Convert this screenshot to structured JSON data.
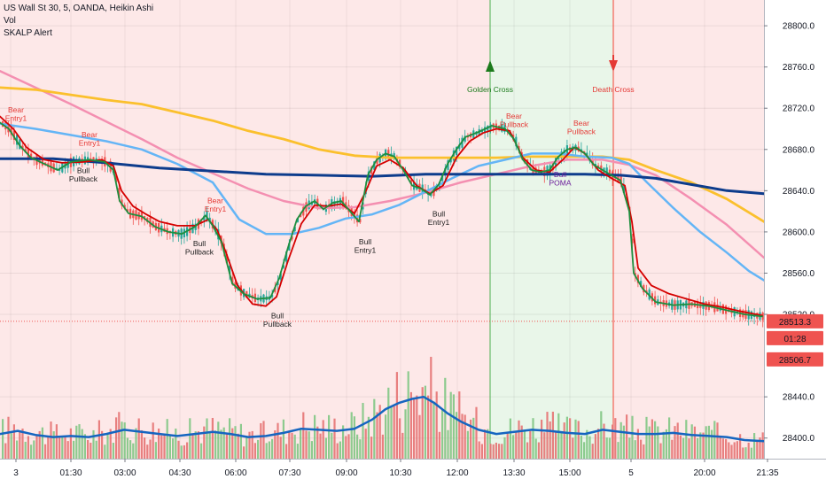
{
  "legend": {
    "symbol_line": "US Wall St 30, 5, OANDA, Heikin Ashi",
    "study_vol": "Vol",
    "study_alert": "SKALP Alert"
  },
  "colors": {
    "bear_bg": "#fde8e8",
    "bull_bg": "#e9f6e9",
    "up_candle": "#26a69a",
    "down_candle": "#ef5350",
    "ema_fast": "#1e8e3e",
    "ema_slow": "#d50000",
    "ma_blue_light": "#64b5f6",
    "ma_pink": "#f48fb1",
    "ma_orange": "#fbc02d",
    "ma_navy": "#0d3c8c",
    "vol_up": "#81c784",
    "vol_down": "#e57373",
    "vol_ma": "#1565c0",
    "label_red": "#e53935",
    "label_green": "#2e7d32"
  },
  "price_axis": {
    "ticks": [
      28800.0,
      28760.0,
      28720.0,
      28680.0,
      28640.0,
      28600.0,
      28560.0,
      28520.0,
      28440.0,
      28400.0
    ],
    "tick_labels": [
      "28800.0",
      "28760.0",
      "28720.0",
      "28680.0",
      "28640.0",
      "28600.0",
      "28560.0",
      "28520.0",
      "28440.0",
      "28400.0"
    ],
    "last_price": "28513.3",
    "countdown": "01:28",
    "low_marker": "28506.7"
  },
  "time_axis": {
    "labels": [
      "3",
      "01:30",
      "03:00",
      "04:30",
      "06:00",
      "07:30",
      "09:00",
      "10:30",
      "12:00",
      "13:30",
      "15:00",
      "5",
      "20:00",
      "21:35"
    ]
  },
  "chart_data": {
    "type": "candlestick",
    "title": "US Wall St 30, 5, OANDA, Heikin Ashi",
    "ylim": [
      28380,
      28825
    ],
    "x_range": [
      "3",
      "21:35"
    ],
    "ema_fast_path": [
      [
        0,
        28706
      ],
      [
        10,
        28700
      ],
      [
        22,
        28684
      ],
      [
        35,
        28672
      ],
      [
        50,
        28666
      ],
      [
        65,
        28660
      ],
      [
        80,
        28668
      ],
      [
        100,
        28670
      ],
      [
        118,
        28668
      ],
      [
        128,
        28660
      ],
      [
        135,
        28630
      ],
      [
        145,
        28618
      ],
      [
        160,
        28615
      ],
      [
        175,
        28605
      ],
      [
        190,
        28600
      ],
      [
        205,
        28598
      ],
      [
        220,
        28605
      ],
      [
        232,
        28616
      ],
      [
        240,
        28606
      ],
      [
        250,
        28590
      ],
      [
        262,
        28550
      ],
      [
        275,
        28540
      ],
      [
        290,
        28535
      ],
      [
        305,
        28536
      ],
      [
        315,
        28555
      ],
      [
        325,
        28585
      ],
      [
        335,
        28612
      ],
      [
        345,
        28625
      ],
      [
        355,
        28630
      ],
      [
        365,
        28622
      ],
      [
        375,
        28628
      ],
      [
        385,
        28630
      ],
      [
        395,
        28620
      ],
      [
        405,
        28610
      ],
      [
        415,
        28655
      ],
      [
        425,
        28670
      ],
      [
        435,
        28676
      ],
      [
        445,
        28673
      ],
      [
        455,
        28660
      ],
      [
        465,
        28645
      ],
      [
        475,
        28642
      ],
      [
        485,
        28636
      ],
      [
        495,
        28646
      ],
      [
        505,
        28666
      ],
      [
        515,
        28680
      ],
      [
        525,
        28692
      ],
      [
        540,
        28697
      ],
      [
        555,
        28703
      ],
      [
        570,
        28700
      ],
      [
        580,
        28690
      ],
      [
        590,
        28670
      ],
      [
        600,
        28660
      ],
      [
        610,
        28658
      ],
      [
        620,
        28660
      ],
      [
        630,
        28673
      ],
      [
        640,
        28680
      ],
      [
        650,
        28682
      ],
      [
        660,
        28676
      ],
      [
        670,
        28665
      ],
      [
        680,
        28660
      ],
      [
        690,
        28655
      ],
      [
        700,
        28650
      ],
      [
        710,
        28620
      ],
      [
        715,
        28560
      ],
      [
        725,
        28545
      ],
      [
        740,
        28532
      ],
      [
        760,
        28529
      ],
      [
        780,
        28530
      ],
      [
        800,
        28528
      ],
      [
        820,
        28524
      ],
      [
        840,
        28520
      ],
      [
        860,
        28518
      ]
    ],
    "ema_slow_path": [
      [
        0,
        28712
      ],
      [
        15,
        28700
      ],
      [
        30,
        28682
      ],
      [
        50,
        28670
      ],
      [
        70,
        28667
      ],
      [
        95,
        28668
      ],
      [
        115,
        28670
      ],
      [
        128,
        28664
      ],
      [
        137,
        28640
      ],
      [
        150,
        28625
      ],
      [
        165,
        28617
      ],
      [
        180,
        28610
      ],
      [
        200,
        28606
      ],
      [
        220,
        28606
      ],
      [
        235,
        28612
      ],
      [
        245,
        28602
      ],
      [
        255,
        28580
      ],
      [
        268,
        28548
      ],
      [
        285,
        28530
      ],
      [
        300,
        28528
      ],
      [
        312,
        28537
      ],
      [
        325,
        28572
      ],
      [
        340,
        28608
      ],
      [
        355,
        28626
      ],
      [
        370,
        28625
      ],
      [
        385,
        28627
      ],
      [
        400,
        28618
      ],
      [
        412,
        28638
      ],
      [
        425,
        28664
      ],
      [
        440,
        28670
      ],
      [
        455,
        28662
      ],
      [
        470,
        28645
      ],
      [
        485,
        28637
      ],
      [
        500,
        28645
      ],
      [
        515,
        28672
      ],
      [
        530,
        28688
      ],
      [
        545,
        28696
      ],
      [
        560,
        28700
      ],
      [
        575,
        28698
      ],
      [
        590,
        28672
      ],
      [
        605,
        28660
      ],
      [
        620,
        28658
      ],
      [
        635,
        28670
      ],
      [
        648,
        28682
      ],
      [
        660,
        28676
      ],
      [
        675,
        28660
      ],
      [
        690,
        28652
      ],
      [
        705,
        28645
      ],
      [
        713,
        28610
      ],
      [
        720,
        28565
      ],
      [
        735,
        28548
      ],
      [
        755,
        28540
      ],
      [
        775,
        28535
      ],
      [
        795,
        28530
      ],
      [
        815,
        28527
      ],
      [
        835,
        28523
      ],
      [
        860,
        28519
      ]
    ],
    "ma_blue_light_path": [
      [
        0,
        28705
      ],
      [
        40,
        28700
      ],
      [
        80,
        28694
      ],
      [
        120,
        28688
      ],
      [
        160,
        28680
      ],
      [
        200,
        28666
      ],
      [
        240,
        28648
      ],
      [
        270,
        28612
      ],
      [
        300,
        28598
      ],
      [
        330,
        28598
      ],
      [
        360,
        28604
      ],
      [
        390,
        28613
      ],
      [
        420,
        28617
      ],
      [
        450,
        28626
      ],
      [
        480,
        28639
      ],
      [
        510,
        28652
      ],
      [
        540,
        28664
      ],
      [
        570,
        28670
      ],
      [
        600,
        28676
      ],
      [
        630,
        28676
      ],
      [
        660,
        28673
      ],
      [
        690,
        28672
      ],
      [
        710,
        28666
      ],
      [
        730,
        28648
      ],
      [
        760,
        28623
      ],
      [
        790,
        28600
      ],
      [
        820,
        28580
      ],
      [
        845,
        28562
      ],
      [
        862,
        28553
      ]
    ],
    "ma_pink_path": [
      [
        0,
        28756
      ],
      [
        40,
        28740
      ],
      [
        80,
        28724
      ],
      [
        120,
        28707
      ],
      [
        160,
        28690
      ],
      [
        200,
        28672
      ],
      [
        240,
        28657
      ],
      [
        280,
        28642
      ],
      [
        320,
        28630
      ],
      [
        360,
        28623
      ],
      [
        400,
        28624
      ],
      [
        440,
        28630
      ],
      [
        480,
        28638
      ],
      [
        520,
        28648
      ],
      [
        560,
        28656
      ],
      [
        600,
        28664
      ],
      [
        640,
        28670
      ],
      [
        680,
        28670
      ],
      [
        710,
        28665
      ],
      [
        740,
        28655
      ],
      [
        780,
        28632
      ],
      [
        820,
        28607
      ],
      [
        862,
        28575
      ]
    ],
    "ma_orange_path": [
      [
        0,
        28740
      ],
      [
        40,
        28738
      ],
      [
        80,
        28733
      ],
      [
        120,
        28728
      ],
      [
        160,
        28724
      ],
      [
        200,
        28716
      ],
      [
        240,
        28708
      ],
      [
        280,
        28698
      ],
      [
        320,
        28690
      ],
      [
        360,
        28680
      ],
      [
        400,
        28674
      ],
      [
        440,
        28672
      ],
      [
        480,
        28672
      ],
      [
        520,
        28672
      ],
      [
        560,
        28672
      ],
      [
        600,
        28673
      ],
      [
        640,
        28673
      ],
      [
        680,
        28673
      ],
      [
        710,
        28670
      ],
      [
        740,
        28660
      ],
      [
        780,
        28648
      ],
      [
        820,
        28632
      ],
      [
        862,
        28610
      ]
    ],
    "ma_navy_path": [
      [
        0,
        28671
      ],
      [
        60,
        28671
      ],
      [
        120,
        28667
      ],
      [
        180,
        28662
      ],
      [
        240,
        28659
      ],
      [
        300,
        28656
      ],
      [
        360,
        28655
      ],
      [
        420,
        28654
      ],
      [
        480,
        28656
      ],
      [
        540,
        28656
      ],
      [
        600,
        28656
      ],
      [
        660,
        28656
      ],
      [
        700,
        28655
      ],
      [
        740,
        28652
      ],
      [
        780,
        28646
      ],
      [
        820,
        28640
      ],
      [
        862,
        28637
      ]
    ],
    "volume_ma_path": [
      [
        0,
        28404
      ],
      [
        20,
        28407
      ],
      [
        40,
        28403
      ],
      [
        60,
        28401
      ],
      [
        80,
        28402
      ],
      [
        100,
        28401
      ],
      [
        120,
        28404
      ],
      [
        140,
        28408
      ],
      [
        160,
        28406
      ],
      [
        180,
        28404
      ],
      [
        200,
        28402
      ],
      [
        220,
        28404
      ],
      [
        240,
        28406
      ],
      [
        260,
        28404
      ],
      [
        280,
        28401
      ],
      [
        300,
        28402
      ],
      [
        320,
        28405
      ],
      [
        340,
        28409
      ],
      [
        360,
        28408
      ],
      [
        380,
        28407
      ],
      [
        400,
        28409
      ],
      [
        420,
        28418
      ],
      [
        435,
        28428
      ],
      [
        450,
        28434
      ],
      [
        465,
        28438
      ],
      [
        478,
        28440
      ],
      [
        490,
        28434
      ],
      [
        505,
        28424
      ],
      [
        520,
        28416
      ],
      [
        540,
        28408
      ],
      [
        560,
        28404
      ],
      [
        580,
        28406
      ],
      [
        600,
        28408
      ],
      [
        620,
        28407
      ],
      [
        640,
        28405
      ],
      [
        660,
        28404
      ],
      [
        680,
        28408
      ],
      [
        700,
        28406
      ],
      [
        720,
        28404
      ],
      [
        740,
        28404
      ],
      [
        760,
        28405
      ],
      [
        780,
        28403
      ],
      [
        800,
        28402
      ],
      [
        820,
        28401
      ],
      [
        840,
        28398
      ],
      [
        862,
        28397
      ]
    ],
    "zones": [
      {
        "type": "bear",
        "from_x": 0,
        "to_x": 553
      },
      {
        "type": "bull",
        "from_x": 553,
        "to_x": 692
      },
      {
        "type": "bear",
        "from_x": 692,
        "to_x": 862
      }
    ],
    "cross_events": [
      {
        "label": "Golden Cross",
        "x": 553,
        "kind": "golden"
      },
      {
        "label": "Death Cross",
        "x": 692,
        "kind": "death"
      }
    ],
    "signals": [
      {
        "lines": [
          "Bear",
          "Entry1"
        ],
        "x": 18,
        "y": 28716,
        "kind": "bear"
      },
      {
        "lines": [
          "Bear",
          "Entry1"
        ],
        "x": 101,
        "y": 28692,
        "kind": "bear"
      },
      {
        "lines": [
          "Bull",
          "Pullback"
        ],
        "x": 94,
        "y": 28657,
        "kind": "bull"
      },
      {
        "lines": [
          "Bear",
          "Entry1"
        ],
        "x": 243,
        "y": 28628,
        "kind": "bear"
      },
      {
        "lines": [
          "Bull",
          "Pullback"
        ],
        "x": 225,
        "y": 28586,
        "kind": "bull"
      },
      {
        "lines": [
          "Bull",
          "Pullback"
        ],
        "x": 313,
        "y": 28516,
        "kind": "bull"
      },
      {
        "lines": [
          "Bull",
          "Entry1"
        ],
        "x": 412,
        "y": 28588,
        "kind": "bull"
      },
      {
        "lines": [
          "Bull",
          "Entry1"
        ],
        "x": 495,
        "y": 28615,
        "kind": "bull"
      },
      {
        "lines": [
          "Bear",
          "Pullback"
        ],
        "x": 580,
        "y": 28710,
        "kind": "bear"
      },
      {
        "lines": [
          "Bear",
          "Pullback"
        ],
        "x": 656,
        "y": 28703,
        "kind": "bear"
      },
      {
        "lines": [
          "Bull",
          "POMA"
        ],
        "x": 632,
        "y": 28653,
        "kind": "poma"
      }
    ]
  }
}
